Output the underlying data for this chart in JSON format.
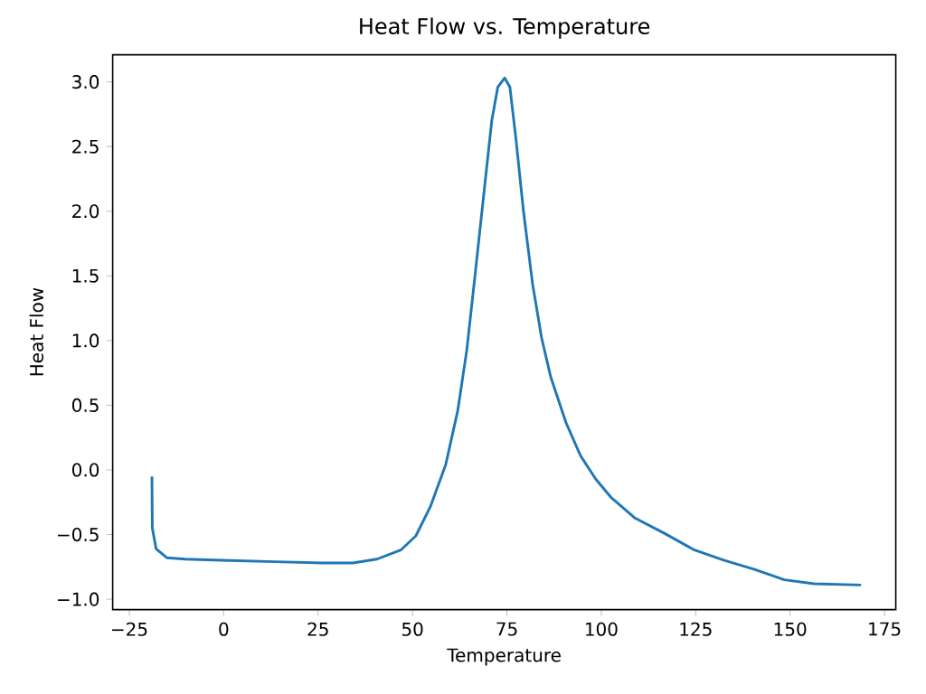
{
  "chart_data": {
    "type": "line",
    "title": "Heat Flow vs. Temperature",
    "xlabel": "Temperature",
    "ylabel": "Heat Flow",
    "x": [
      -19.0,
      -18.9,
      -17.9,
      -15,
      -10.2,
      1.3,
      13.6,
      26.3,
      34.2,
      40.6,
      46.9,
      50.9,
      54.8,
      58.8,
      62,
      64.4,
      66.7,
      69.1,
      71,
      72.6,
      74.4,
      75.8,
      77.4,
      79.4,
      81.8,
      84.2,
      86.6,
      90.6,
      94.5,
      98.5,
      102.5,
      108.8,
      116.7,
      124.7,
      132.6,
      140.6,
      148.5,
      156.4,
      168.8
    ],
    "series": [
      {
        "color": "#1f77b4",
        "values": [
          -0.05,
          -0.45,
          -0.61,
          -0.68,
          -0.69,
          -0.7,
          -0.71,
          -0.72,
          -0.72,
          -0.69,
          -0.62,
          -0.51,
          -0.28,
          0.04,
          0.46,
          0.93,
          1.54,
          2.19,
          2.7,
          2.96,
          3.03,
          2.96,
          2.56,
          2.0,
          1.44,
          1.02,
          0.72,
          0.37,
          0.11,
          -0.07,
          -0.21,
          -0.37,
          -0.49,
          -0.62,
          -0.7,
          -0.77,
          -0.85,
          -0.88,
          -0.89
        ]
      }
    ],
    "xlim": [
      -29.4,
      178
    ],
    "ylim": [
      -1.08,
      3.21
    ],
    "xticks": [
      {
        "value": -25,
        "label": "−25"
      },
      0,
      25,
      50,
      75,
      100,
      125,
      150,
      175
    ],
    "yticks": [
      {
        "value": -1.0,
        "label": "−1.0"
      },
      {
        "value": -0.5,
        "label": "−0.5"
      },
      {
        "value": 0.0,
        "label": "0.0"
      },
      {
        "value": 0.5,
        "label": "0.5"
      },
      {
        "value": 1.0,
        "label": "1.0"
      },
      {
        "value": 1.5,
        "label": "1.5"
      },
      {
        "value": 2.0,
        "label": "2.0"
      },
      {
        "value": 2.5,
        "label": "2.5"
      },
      {
        "value": 3.0,
        "label": "3.0"
      }
    ],
    "grid": false,
    "marker": "none",
    "line_style": "solid"
  }
}
